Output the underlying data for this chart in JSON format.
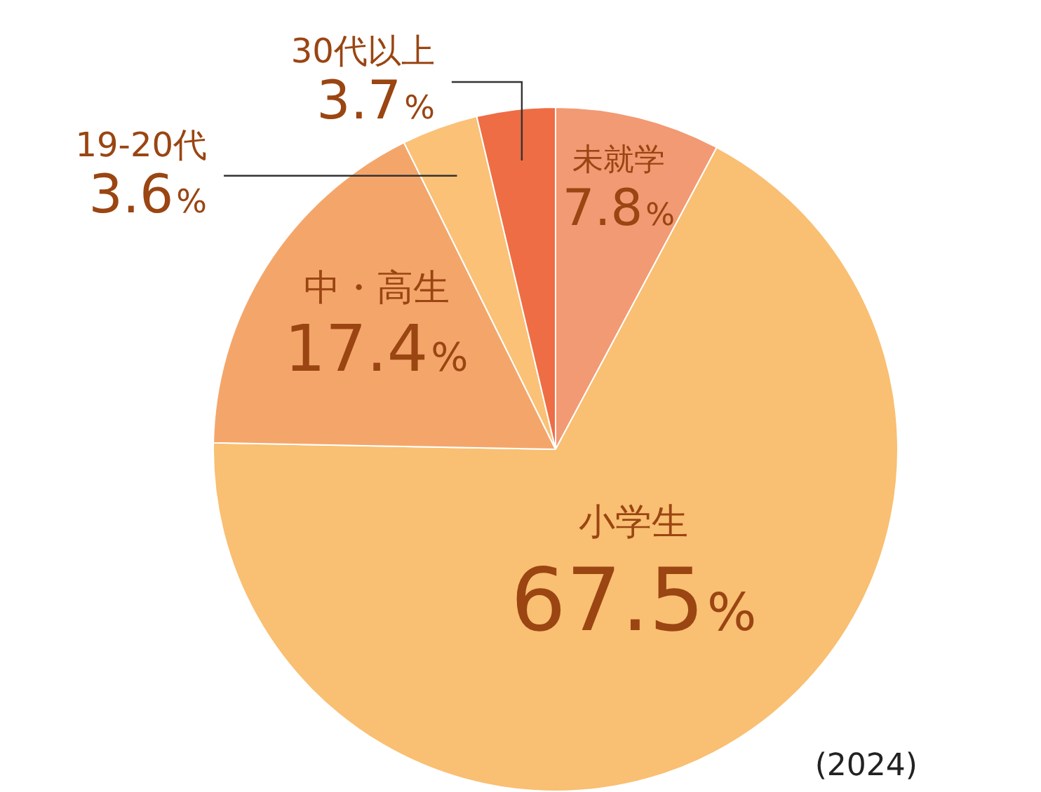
{
  "chart_data": {
    "type": "pie",
    "categories": [
      "未就学",
      "小学生",
      "中・高生",
      "19-20代",
      "30代以上"
    ],
    "values": [
      7.8,
      67.5,
      17.4,
      3.6,
      3.7
    ],
    "colors": [
      "#f29a74",
      "#f9bf72",
      "#f4a66a",
      "#fac177",
      "#ee6d45"
    ],
    "value_labels": [
      "7.8%",
      "67.5%",
      "17.4%",
      "3.6%",
      "3.7%"
    ],
    "annotations": [
      "(2024)"
    ],
    "legend": false
  }
}
